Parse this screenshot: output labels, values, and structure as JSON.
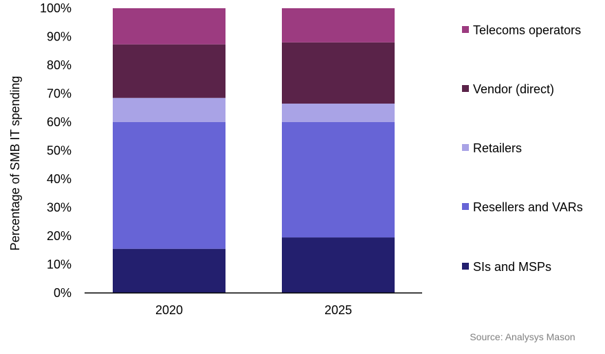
{
  "chart_data": {
    "type": "bar",
    "stacked": true,
    "categories": [
      "2020",
      "2025"
    ],
    "series": [
      {
        "name": "SIs and MSPs",
        "values": [
          15.5,
          19.5
        ],
        "color": "#231f6e"
      },
      {
        "name": "Resellers and VARs",
        "values": [
          44.5,
          40.5
        ],
        "color": "#6764d6"
      },
      {
        "name": "Retailers",
        "values": [
          8.5,
          6.5
        ],
        "color": "#a9a3e6"
      },
      {
        "name": "Vendor (direct)",
        "values": [
          18.8,
          21.5
        ],
        "color": "#5a2349"
      },
      {
        "name": "Telecoms operators",
        "values": [
          12.7,
          12.0
        ],
        "color": "#9c3b80"
      }
    ],
    "ylabel": "Percentage of SMB IT spending",
    "xlabel": "",
    "ylim": [
      0,
      100
    ],
    "yticks": [
      "0%",
      "10%",
      "20%",
      "30%",
      "40%",
      "50%",
      "60%",
      "70%",
      "80%",
      "90%",
      "100%"
    ],
    "grid": false,
    "legend_position": "right",
    "legend_order": [
      "Telecoms operators",
      "Vendor (direct)",
      "Retailers",
      "Resellers and VARs",
      "SIs and MSPs"
    ]
  },
  "source": "Source: Analysys Mason"
}
